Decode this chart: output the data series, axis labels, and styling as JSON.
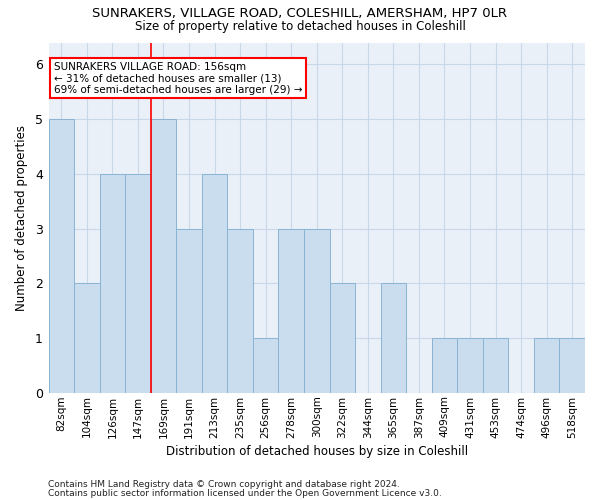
{
  "title": "SUNRAKERS, VILLAGE ROAD, COLESHILL, AMERSHAM, HP7 0LR",
  "subtitle": "Size of property relative to detached houses in Coleshill",
  "xlabel": "Distribution of detached houses by size in Coleshill",
  "ylabel": "Number of detached properties",
  "footnote1": "Contains HM Land Registry data © Crown copyright and database right 2024.",
  "footnote2": "Contains public sector information licensed under the Open Government Licence v3.0.",
  "categories": [
    "82sqm",
    "104sqm",
    "126sqm",
    "147sqm",
    "169sqm",
    "191sqm",
    "213sqm",
    "235sqm",
    "256sqm",
    "278sqm",
    "300sqm",
    "322sqm",
    "344sqm",
    "365sqm",
    "387sqm",
    "409sqm",
    "431sqm",
    "453sqm",
    "474sqm",
    "496sqm",
    "518sqm"
  ],
  "values": [
    5,
    2,
    4,
    4,
    5,
    3,
    4,
    3,
    1,
    3,
    3,
    2,
    0,
    2,
    0,
    1,
    1,
    1,
    0,
    1,
    1
  ],
  "bar_color": "#c9ddef",
  "bar_edge_color": "#8ab4d4",
  "ylim": [
    0,
    6.4
  ],
  "yticks": [
    0,
    1,
    2,
    3,
    4,
    5,
    6
  ],
  "red_line_x": 3.5,
  "annotation_line1": "SUNRAKERS VILLAGE ROAD: 156sqm",
  "annotation_line2": "← 31% of detached houses are smaller (13)",
  "annotation_line3": "69% of semi-detached houses are larger (29) →",
  "grid_color": "#c8d8e8",
  "background_color": "#eaf0f8",
  "title_fontsize": 9.5,
  "subtitle_fontsize": 8.5,
  "tick_fontsize": 7.5,
  "ytick_fontsize": 9,
  "xlabel_fontsize": 8.5,
  "ylabel_fontsize": 8.5,
  "footnote_fontsize": 6.5
}
